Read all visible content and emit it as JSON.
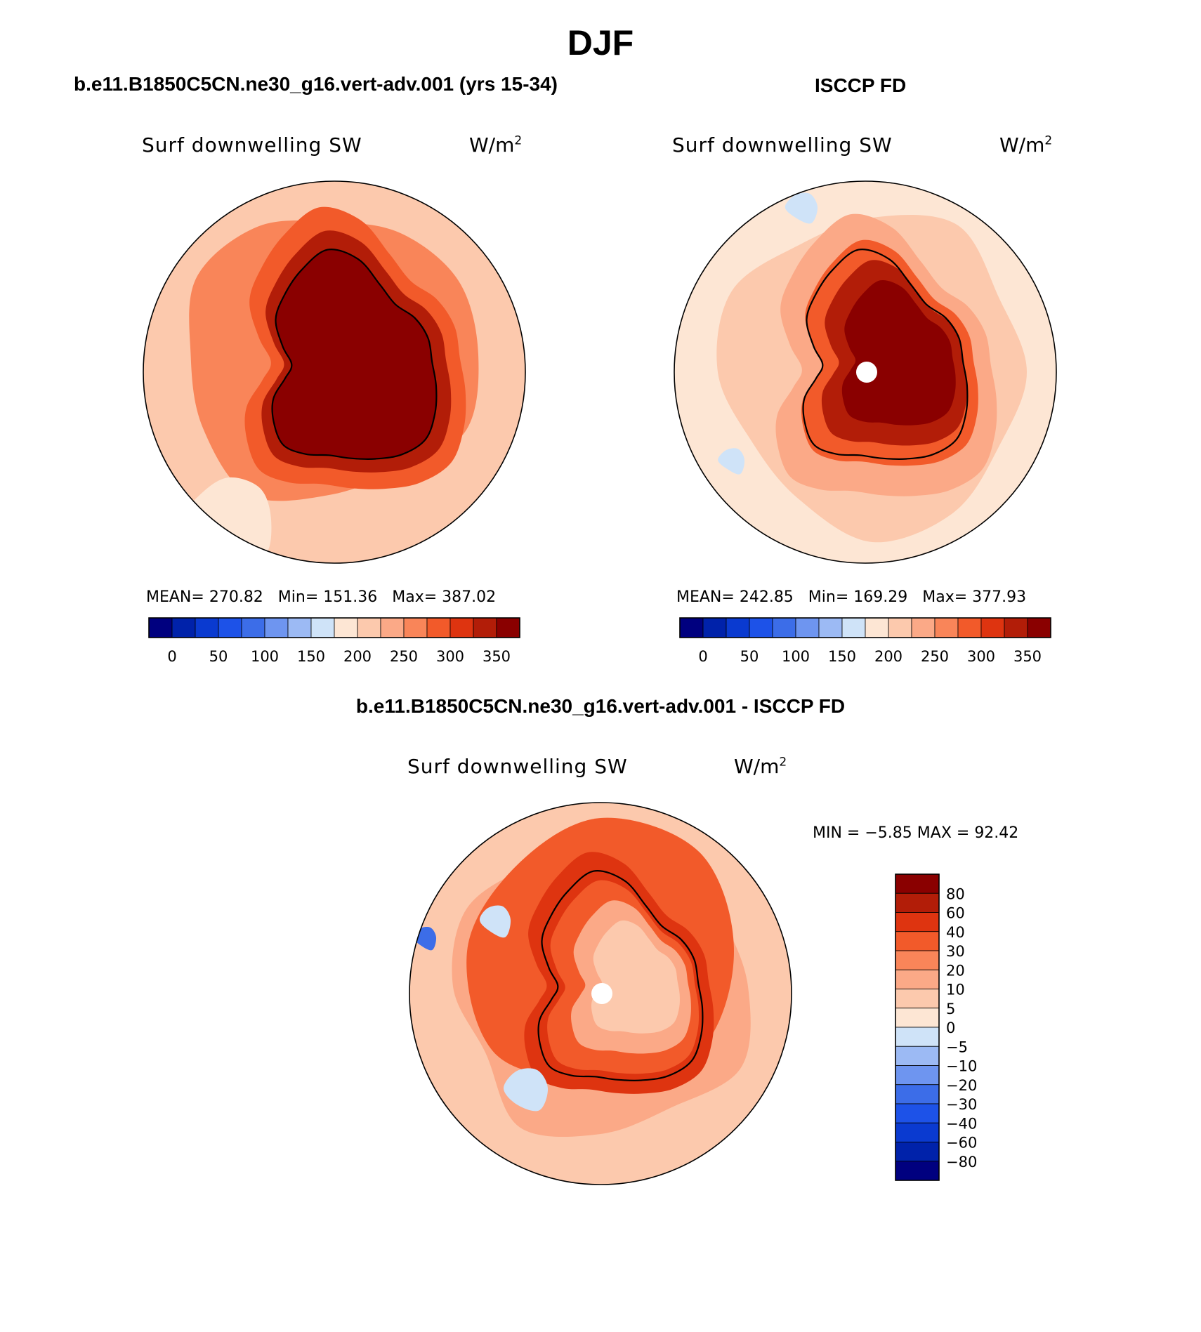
{
  "page_title": "DJF",
  "panels": {
    "model": {
      "header": "b.e11.B1850C5CN.ne30_g16.vert-adv.001 (yrs 15-34)",
      "variable": "Surf downwelling SW",
      "units": "W/m",
      "units_exp": "2",
      "stats": {
        "mean_label": "MEAN=",
        "mean": "270.82",
        "min_label": "Min=",
        "min": "151.36",
        "max_label": "Max=",
        "max": "387.02"
      }
    },
    "obs": {
      "header": "ISCCP FD",
      "variable": "Surf downwelling SW",
      "units": "W/m",
      "units_exp": "2",
      "stats": {
        "mean_label": "MEAN=",
        "mean": "242.85",
        "min_label": "Min=",
        "min": "169.29",
        "max_label": "Max=",
        "max": "377.93"
      }
    },
    "diff": {
      "header": "b.e11.B1850C5CN.ne30_g16.vert-adv.001 - ISCCP FD",
      "variable": "Surf downwelling SW",
      "units": "W/m",
      "units_exp": "2",
      "stats": {
        "min_label": "MIN =",
        "min": "−5.85",
        "max_label": "MAX =",
        "max": "92.42"
      }
    }
  },
  "colors": {
    "abs_scale": [
      "#00007f",
      "#0022aa",
      "#0a3ad0",
      "#1d52e8",
      "#3c6de8",
      "#6e95f0",
      "#9cbaf4",
      "#cfe3f8",
      "#fde6d4",
      "#fcc9ad",
      "#fba987",
      "#f98559",
      "#f25a2a",
      "#de3410",
      "#b21d08",
      "#8a0000"
    ],
    "diff_scale": [
      "#00007f",
      "#0022aa",
      "#0a3ad0",
      "#1d52e8",
      "#3c6de8",
      "#6e95f0",
      "#9cbaf4",
      "#cfe3f8",
      "#fde6d4",
      "#fcc9ad",
      "#fba987",
      "#f98559",
      "#f25a2a",
      "#de3410",
      "#b21d08",
      "#8a0000"
    ],
    "land_outline": "#000000",
    "map_border": "#000000"
  },
  "chart_data": [
    {
      "type": "heatmap",
      "title": "Surf downwelling SW",
      "projection": "south-polar-stereographic",
      "colorbar_orientation": "horizontal",
      "colorbar_ticks": [
        "0",
        "50",
        "100",
        "150",
        "200",
        "250",
        "300",
        "350"
      ],
      "value_range": [
        151.36,
        387.02
      ],
      "mean": 270.82
    },
    {
      "type": "heatmap",
      "title": "Surf downwelling SW",
      "projection": "south-polar-stereographic",
      "colorbar_orientation": "horizontal",
      "colorbar_ticks": [
        "0",
        "50",
        "100",
        "150",
        "200",
        "250",
        "300",
        "350"
      ],
      "value_range": [
        169.29,
        377.93
      ],
      "mean": 242.85,
      "pole_missing": true
    },
    {
      "type": "heatmap",
      "title": "Surf downwelling SW",
      "projection": "south-polar-stereographic",
      "colorbar_orientation": "vertical",
      "colorbar_ticks": [
        "80",
        "60",
        "40",
        "30",
        "20",
        "10",
        "5",
        "0",
        "−5",
        "−10",
        "−20",
        "−30",
        "−40",
        "−60",
        "−80"
      ],
      "value_range": [
        -5.85,
        92.42
      ],
      "pole_missing": true
    }
  ]
}
